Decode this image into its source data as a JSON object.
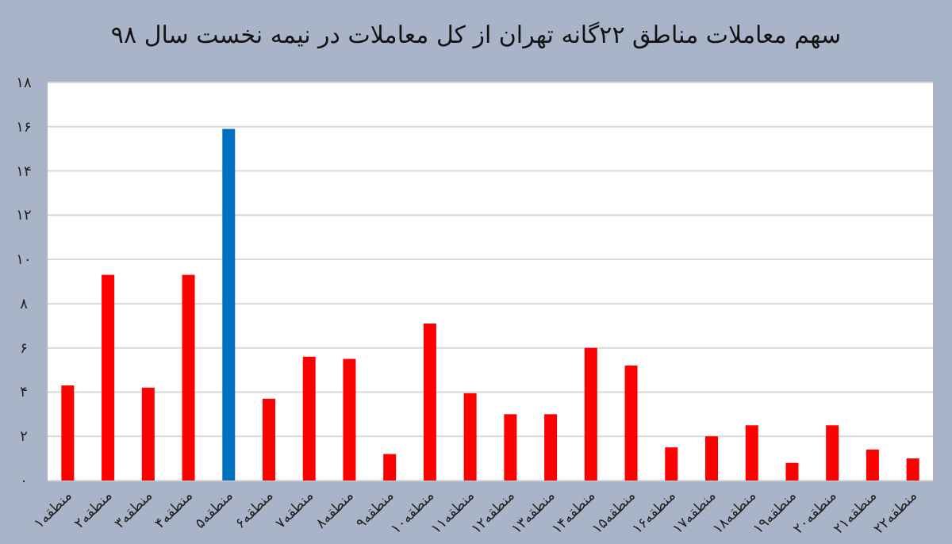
{
  "chart_data": {
    "type": "bar",
    "title": "سهم معاملات مناطق ۲۲گانه تهران از کل معاملات در نیمه نخست سال ۹۸",
    "categories": [
      "منطقه۱",
      "منطقه۲",
      "منطقه۳",
      "منطقه۴",
      "منطقه۵",
      "منطقه۶",
      "منطقه۷",
      "منطقه۸",
      "منطقه۹",
      "منطقه۱۰",
      "منطقه۱۱",
      "منطقه۱۲",
      "منطقه۱۳",
      "منطقه۱۴",
      "منطقه۱۵",
      "منطقه۱۶",
      "منطقه۱۷",
      "منطقه۱۸",
      "منطقه۱۹",
      "منطقه۲۰",
      "منطقه۲۱",
      "منطقه۲۲"
    ],
    "values": [
      4.3,
      9.3,
      4.2,
      9.3,
      15.9,
      3.7,
      5.6,
      5.5,
      1.2,
      7.1,
      3.95,
      3.0,
      3.0,
      6.0,
      5.2,
      1.5,
      2.0,
      2.5,
      0.8,
      2.5,
      1.4,
      1.0
    ],
    "colors": [
      "#ff0000",
      "#ff0000",
      "#ff0000",
      "#ff0000",
      "#0070c0",
      "#ff0000",
      "#ff0000",
      "#ff0000",
      "#ff0000",
      "#ff0000",
      "#ff0000",
      "#ff0000",
      "#ff0000",
      "#ff0000",
      "#ff0000",
      "#ff0000",
      "#ff0000",
      "#ff0000",
      "#ff0000",
      "#ff0000",
      "#ff0000",
      "#ff0000"
    ],
    "ylim": [
      0,
      18
    ],
    "yticks": [
      {
        "value": 0,
        "label": "۰"
      },
      {
        "value": 2,
        "label": "۲"
      },
      {
        "value": 4,
        "label": "۴"
      },
      {
        "value": 6,
        "label": "۶"
      },
      {
        "value": 8,
        "label": "۸"
      },
      {
        "value": 10,
        "label": "۱۰"
      },
      {
        "value": 12,
        "label": "۱۲"
      },
      {
        "value": 14,
        "label": "۱۴"
      },
      {
        "value": 16,
        "label": "۱۶"
      },
      {
        "value": 18,
        "label": "۱۸"
      }
    ],
    "grid": "y"
  }
}
